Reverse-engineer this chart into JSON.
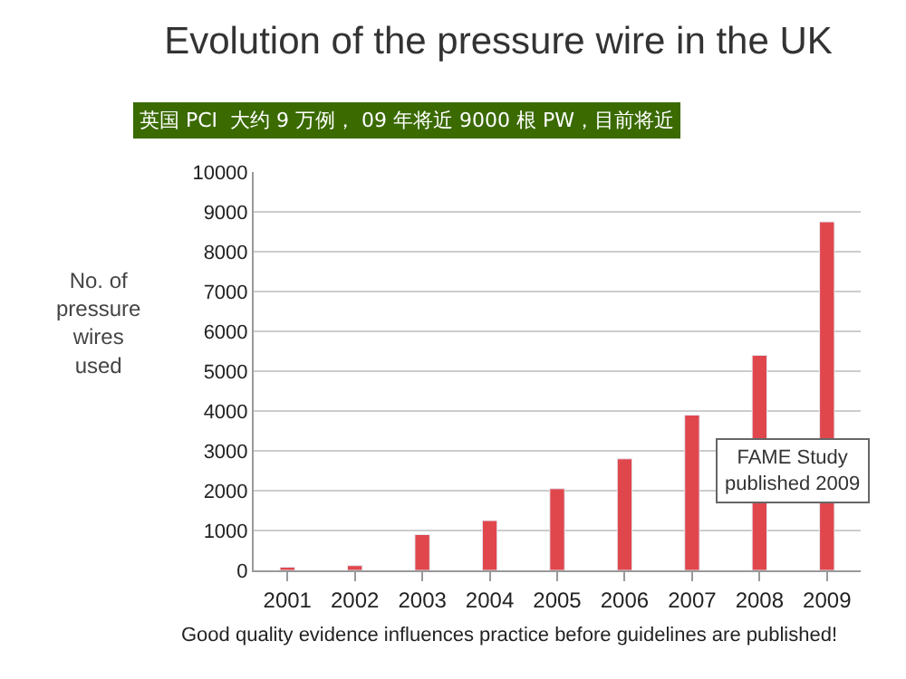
{
  "chart_data": {
    "type": "bar",
    "title": "Evolution of the pressure wire in the UK",
    "subtitle": "英国 PCI  大约 9 万例， 09 年将近 9000 根 PW，目前将近",
    "ylabel": "No. of pressure wires used",
    "categories": [
      "2001",
      "2002",
      "2003",
      "2004",
      "2005",
      "2006",
      "2007",
      "2008",
      "2009"
    ],
    "values": [
      80,
      120,
      900,
      1250,
      2050,
      2800,
      3900,
      5400,
      8750
    ],
    "color": "#e0474c",
    "ylim": [
      0,
      10000
    ],
    "yticks": [
      0,
      1000,
      2000,
      3000,
      4000,
      5000,
      6000,
      7000,
      8000,
      9000,
      10000
    ],
    "grid": "y",
    "legend": false,
    "annotations": [
      "FAME Study published 2009",
      "Good quality evidence influences practice before guidelines are published!"
    ]
  }
}
